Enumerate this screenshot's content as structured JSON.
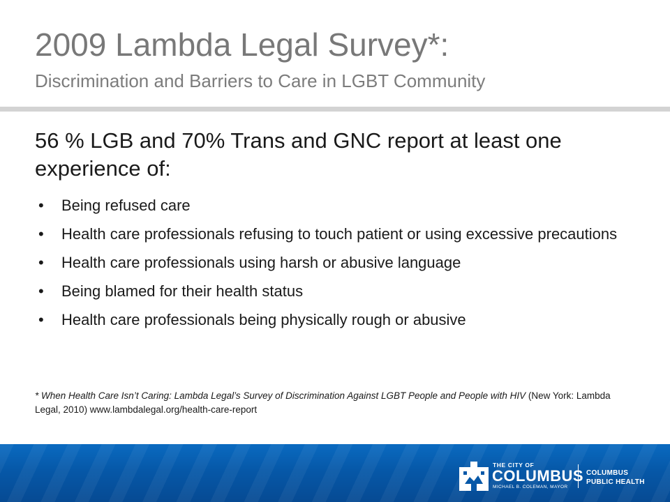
{
  "header": {
    "title": "2009 Lambda Legal Survey*:",
    "subtitle": "Discrimination and Barriers to Care in LGBT Community"
  },
  "body": {
    "lead": "56 % LGB and 70% Trans and GNC report at least one experience of:",
    "bullet_char": "•",
    "bullets": [
      "Being refused care",
      "Health care professionals refusing to touch patient or using excessive precautions",
      "Health care professionals using harsh or abusive language",
      "Being blamed for their health status",
      "Health care professionals being physically rough or abusive"
    ]
  },
  "footnote": {
    "italic_part": "* When Health Care Isn’t Caring: Lambda Legal’s Survey of Discrimination Against LGBT People and People with HIV",
    "rest": " (New York: Lambda Legal, 2010) www.lambdalegal.org/health-care-report"
  },
  "footer": {
    "logo": {
      "city_line": "THE CITY OF",
      "name": "COLUMBUS",
      "mayor_line": "MICHAEL B. COLEMAN, MAYOR",
      "dept_line1": "COLUMBUS",
      "dept_line2": "PUBLIC HEALTH",
      "icon": "columbus-building-icon"
    },
    "colors": {
      "bar": "#0658a8",
      "logo": "#ffffff"
    }
  },
  "colors": {
    "title": "#787878",
    "body_text": "#1a1a1a",
    "divider": "#d3d3d3"
  }
}
